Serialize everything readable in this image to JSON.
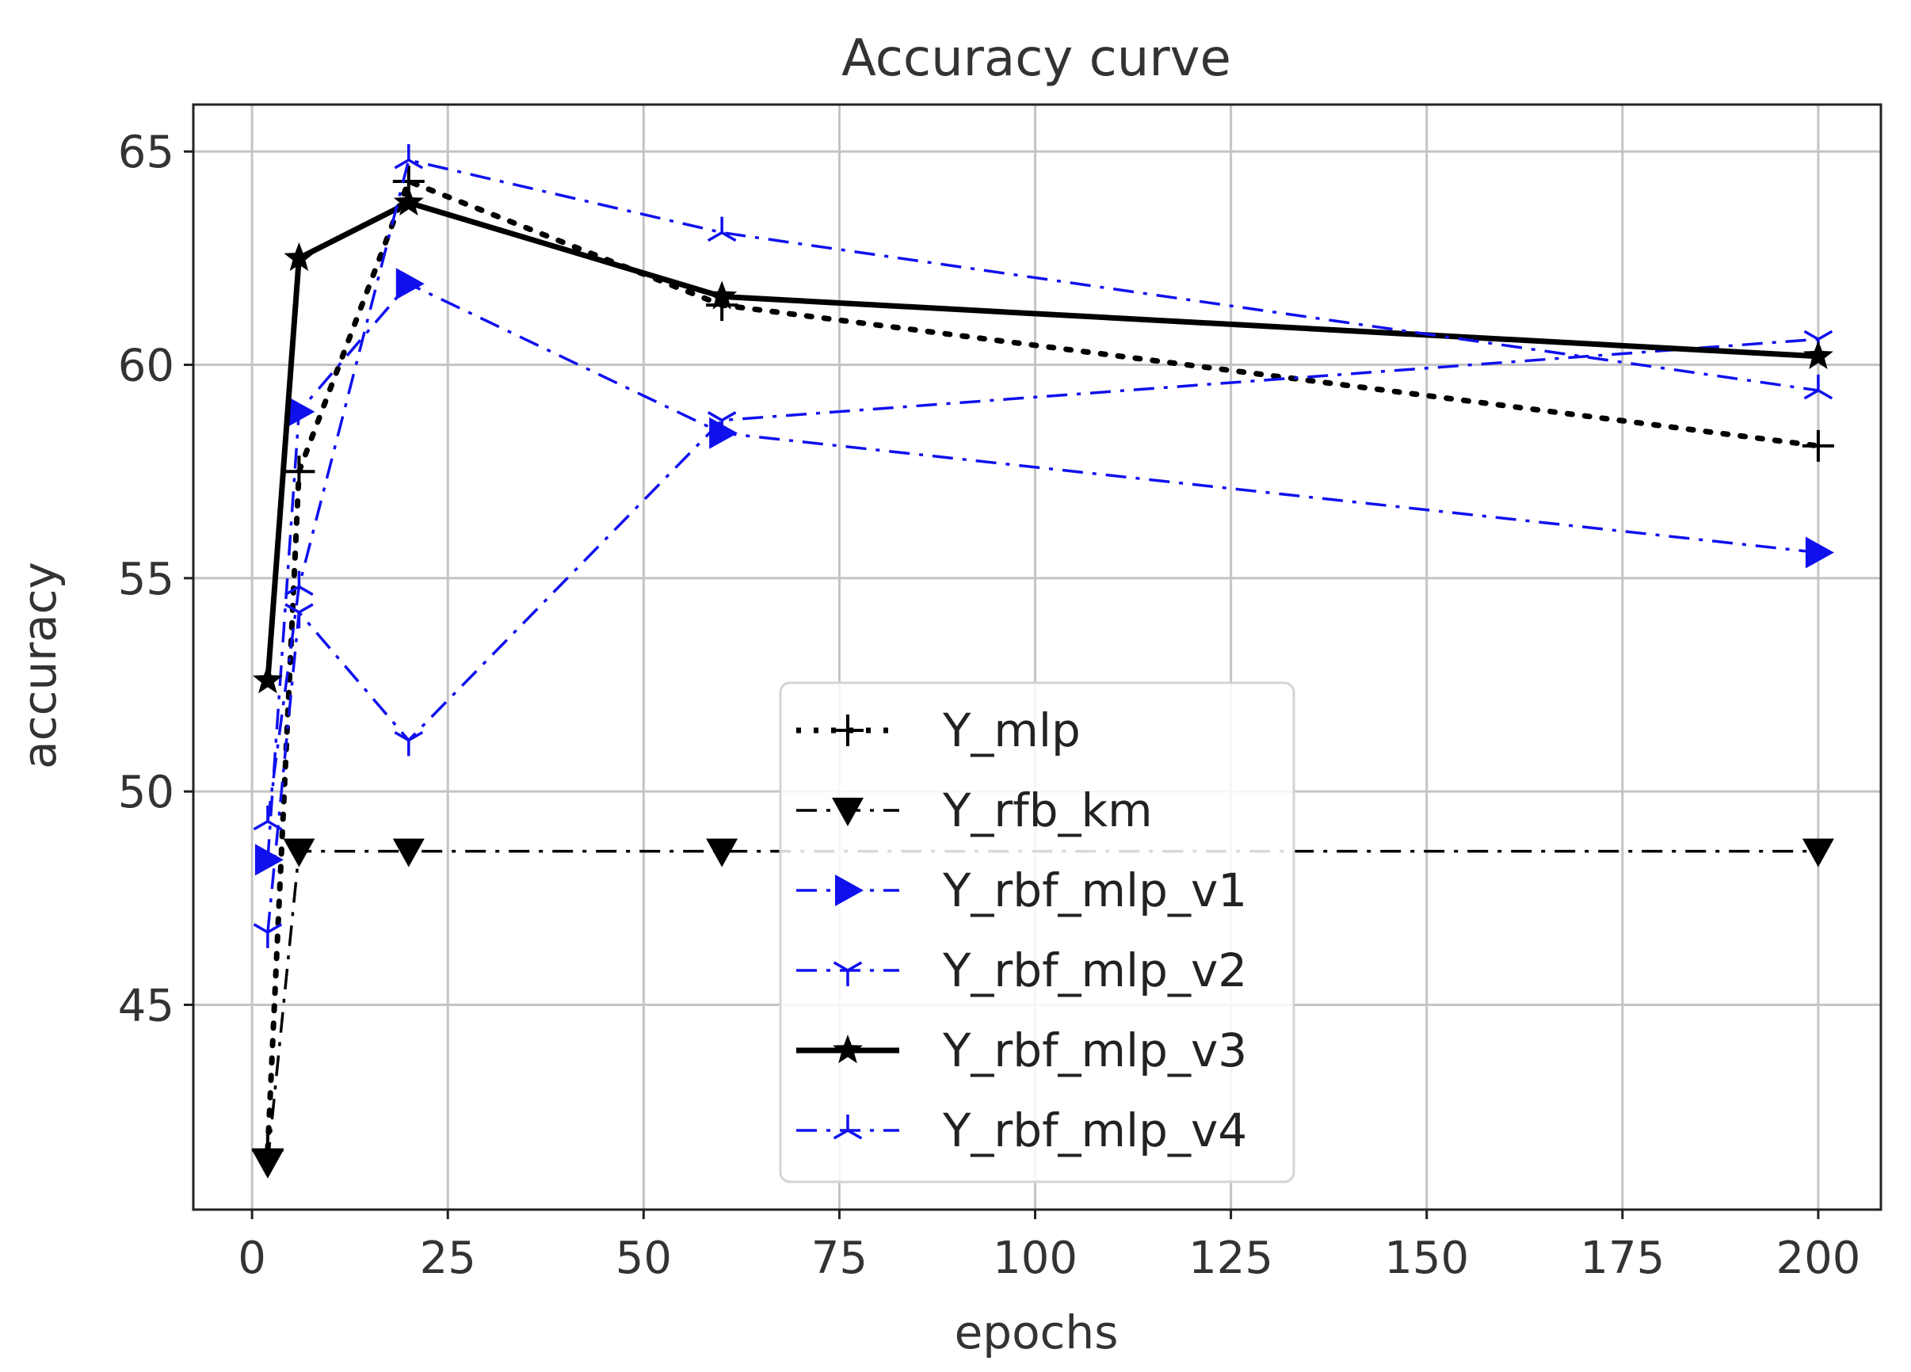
{
  "chart_data": {
    "type": "line",
    "title": "Accuracy curve",
    "xlabel": "epochs",
    "ylabel": "accuracy",
    "xlim": [
      -7.5,
      208
    ],
    "ylim": [
      40.2,
      66.1
    ],
    "xticks": [
      0,
      25,
      50,
      75,
      100,
      125,
      150,
      175,
      200
    ],
    "yticks": [
      45,
      50,
      55,
      60,
      65
    ],
    "xtick_labels": [
      "0",
      "25",
      "50",
      "75",
      "100",
      "125",
      "150",
      "175",
      "200"
    ],
    "ytick_labels": [
      "45",
      "50",
      "55",
      "60",
      "65"
    ],
    "grid": true,
    "legend_position": "center",
    "x": [
      2,
      6,
      20,
      60,
      200
    ],
    "series": [
      {
        "name": "Y_mlp",
        "color": "#000000",
        "style": "dotted",
        "marker": "plus",
        "values": [
          41.6,
          57.5,
          64.3,
          61.4,
          58.1
        ]
      },
      {
        "name": "Y_rfb_km",
        "color": "#000000",
        "style": "dashdot",
        "marker": "triangle-down",
        "values": [
          41.3,
          48.6,
          48.6,
          48.6,
          48.6
        ]
      },
      {
        "name": "Y_rbf_mlp_v1",
        "color": "#1010ee",
        "style": "dashdot",
        "marker": "triangle-right",
        "values": [
          48.4,
          58.9,
          61.9,
          58.4,
          55.6
        ]
      },
      {
        "name": "Y_rbf_mlp_v2",
        "color": "#1010ee",
        "style": "dashdot",
        "marker": "tri-down",
        "values": [
          46.7,
          54.2,
          51.2,
          58.7,
          60.6
        ]
      },
      {
        "name": "Y_rbf_mlp_v3",
        "color": "#000000",
        "style": "solid",
        "marker": "star",
        "values": [
          52.6,
          62.5,
          63.8,
          61.6,
          60.2
        ]
      },
      {
        "name": "Y_rbf_mlp_v4",
        "color": "#1010ee",
        "style": "dashdot",
        "marker": "tri-up",
        "values": [
          49.3,
          54.8,
          64.8,
          63.1,
          59.4
        ]
      }
    ]
  }
}
